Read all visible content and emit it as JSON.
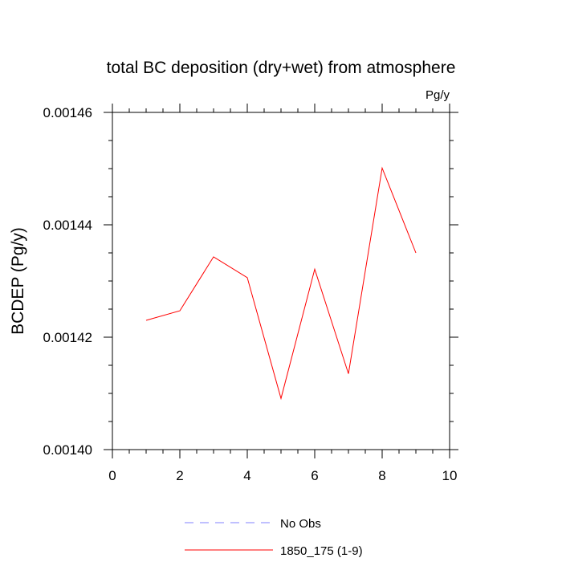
{
  "chart_data": {
    "type": "line",
    "title": "total BC deposition (dry+wet) from atmosphere",
    "units_label": "Pg/y",
    "xlabel": "",
    "ylabel": "BCDEP  (Pg/y)",
    "xlim": [
      0,
      10
    ],
    "ylim": [
      0.0014,
      0.00146
    ],
    "x_ticks": [
      0,
      2,
      4,
      6,
      8,
      10
    ],
    "x_tick_labels": [
      "0",
      "2",
      "4",
      "6",
      "8",
      "10"
    ],
    "y_ticks": [
      0.0014,
      0.00142,
      0.00144,
      0.00146
    ],
    "y_tick_labels": [
      "0.00140",
      "0.00142",
      "0.00144",
      "0.00146"
    ],
    "x_minor_step": 0.5,
    "y_minor_step": 5e-06,
    "grid": false,
    "legend_position": "bottom",
    "series": [
      {
        "name": "1850_175 (1-9)",
        "color": "#ff0000",
        "x": [
          1,
          2,
          3,
          4,
          5,
          6,
          7,
          8,
          9
        ],
        "y": [
          0.001423,
          0.0014247,
          0.0014343,
          0.0014306,
          0.0014091,
          0.0014321,
          0.0014135,
          0.0014501,
          0.001435
        ]
      }
    ],
    "legend": [
      {
        "label": "No Obs",
        "color": "#8080ff",
        "style": "dashed"
      },
      {
        "label": "1850_175 (1-9)",
        "color": "#ff0000",
        "style": "solid"
      }
    ]
  }
}
